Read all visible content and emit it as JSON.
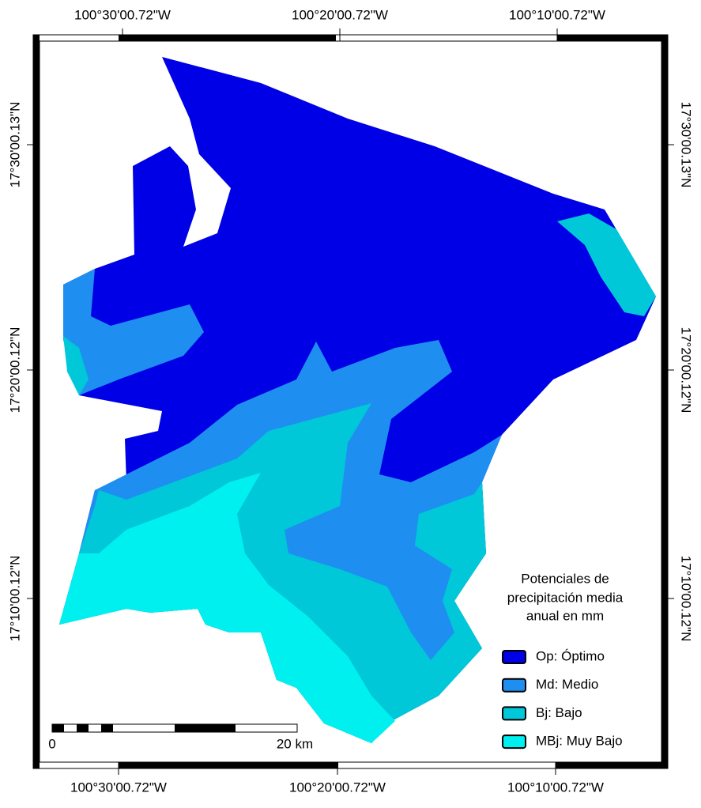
{
  "coordinates": {
    "top": [
      "100°30'00.72\"W",
      "100°20'00.72\"W",
      "100°10'00.72\"W"
    ],
    "bottom": [
      "100°30'00.72\"W",
      "100°20'00.72\"W",
      "100°10'00.72\"W"
    ],
    "left": [
      "17°30'00.13\"N",
      "17°20'00.12\"N",
      "17°10'00.12\"N"
    ],
    "right": [
      "17°30'00.13\"N",
      "17°20'00.12\"N",
      "17°10'00.12\"N"
    ]
  },
  "legend": {
    "title": [
      "Potenciales de",
      "precipitación media",
      "anual en mm"
    ],
    "items": [
      {
        "label": "Op: Óptimo",
        "color": "#0000e6"
      },
      {
        "label": "Md: Medio",
        "color": "#1e8ff0"
      },
      {
        "label": "Bj: Bajo",
        "color": "#00c8d8"
      },
      {
        "label": "MBj: Muy Bajo",
        "color": "#00f0f0"
      }
    ]
  },
  "scale_bar": {
    "start": "0",
    "end": "20 km"
  }
}
